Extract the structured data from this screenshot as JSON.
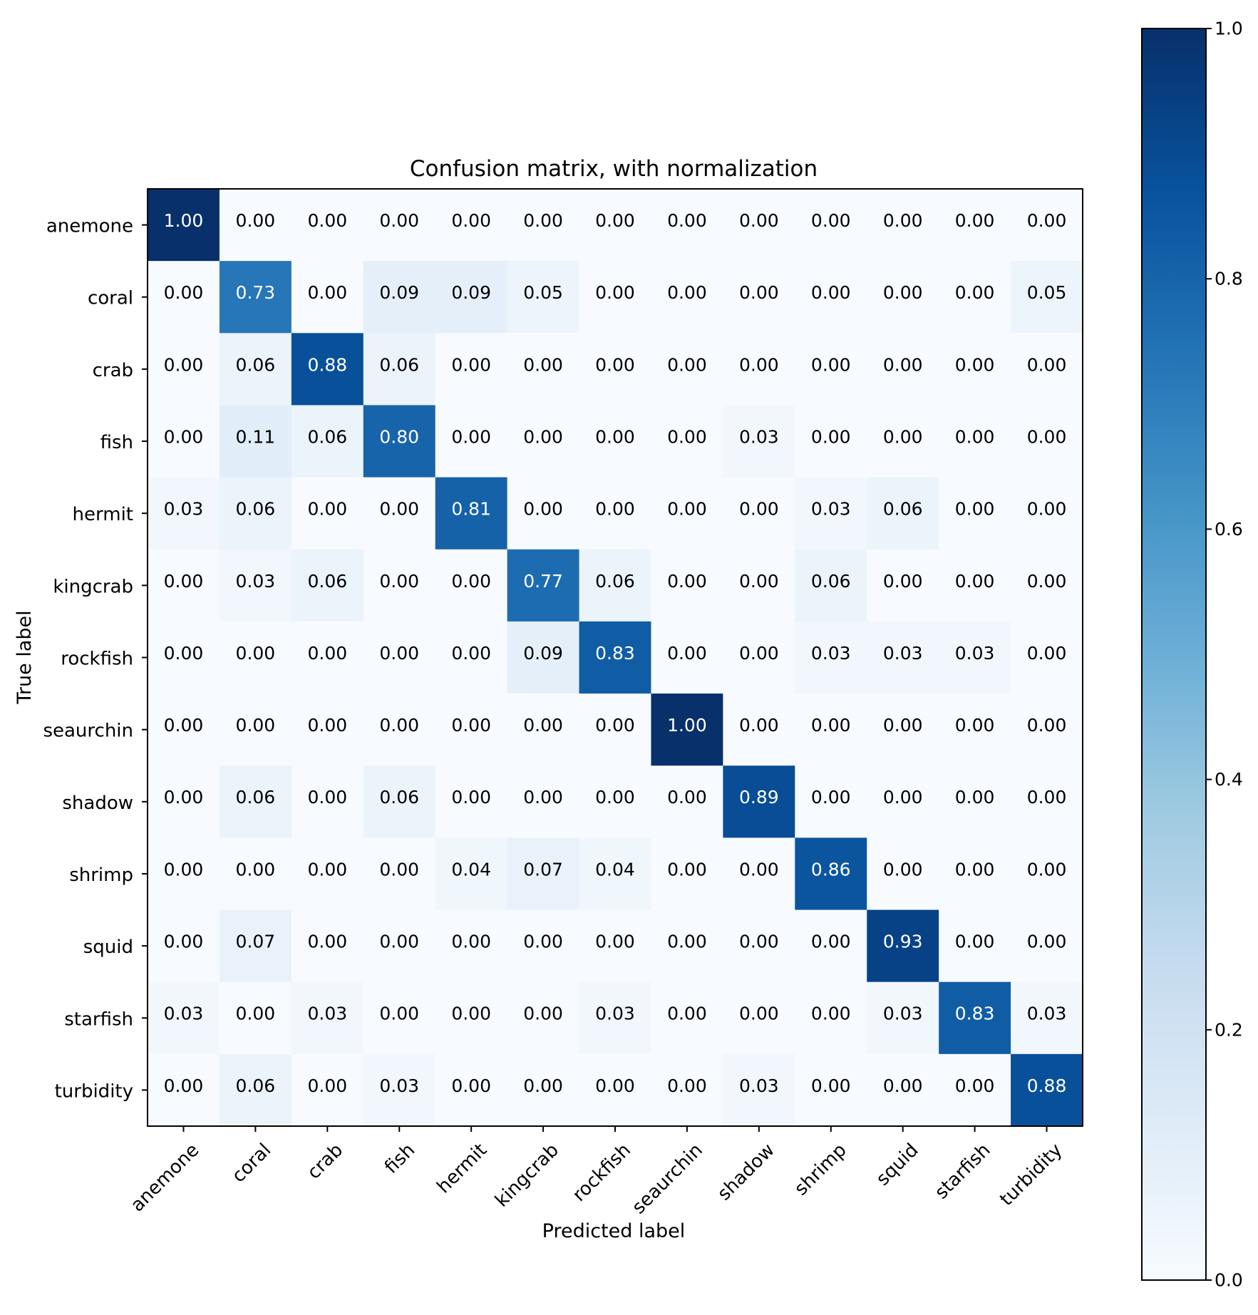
{
  "chart_data": {
    "type": "heatmap",
    "title": "Confusion matrix, with normalization",
    "xlabel": "Predicted label",
    "ylabel": "True label",
    "labels": [
      "anemone",
      "coral",
      "crab",
      "fish",
      "hermit",
      "kingcrab",
      "rockfish",
      "seaurchin",
      "shadow",
      "shrimp",
      "squid",
      "starfish",
      "turbidity"
    ],
    "matrix": [
      [
        1.0,
        0.0,
        0.0,
        0.0,
        0.0,
        0.0,
        0.0,
        0.0,
        0.0,
        0.0,
        0.0,
        0.0,
        0.0
      ],
      [
        0.0,
        0.73,
        0.0,
        0.09,
        0.09,
        0.05,
        0.0,
        0.0,
        0.0,
        0.0,
        0.0,
        0.0,
        0.05
      ],
      [
        0.0,
        0.06,
        0.88,
        0.06,
        0.0,
        0.0,
        0.0,
        0.0,
        0.0,
        0.0,
        0.0,
        0.0,
        0.0
      ],
      [
        0.0,
        0.11,
        0.06,
        0.8,
        0.0,
        0.0,
        0.0,
        0.0,
        0.03,
        0.0,
        0.0,
        0.0,
        0.0
      ],
      [
        0.03,
        0.06,
        0.0,
        0.0,
        0.81,
        0.0,
        0.0,
        0.0,
        0.0,
        0.03,
        0.06,
        0.0,
        0.0
      ],
      [
        0.0,
        0.03,
        0.06,
        0.0,
        0.0,
        0.77,
        0.06,
        0.0,
        0.0,
        0.06,
        0.0,
        0.0,
        0.0
      ],
      [
        0.0,
        0.0,
        0.0,
        0.0,
        0.0,
        0.09,
        0.83,
        0.0,
        0.0,
        0.03,
        0.03,
        0.03,
        0.0
      ],
      [
        0.0,
        0.0,
        0.0,
        0.0,
        0.0,
        0.0,
        0.0,
        1.0,
        0.0,
        0.0,
        0.0,
        0.0,
        0.0
      ],
      [
        0.0,
        0.06,
        0.0,
        0.06,
        0.0,
        0.0,
        0.0,
        0.0,
        0.89,
        0.0,
        0.0,
        0.0,
        0.0
      ],
      [
        0.0,
        0.0,
        0.0,
        0.0,
        0.04,
        0.07,
        0.04,
        0.0,
        0.0,
        0.86,
        0.0,
        0.0,
        0.0
      ],
      [
        0.0,
        0.07,
        0.0,
        0.0,
        0.0,
        0.0,
        0.0,
        0.0,
        0.0,
        0.0,
        0.93,
        0.0,
        0.0
      ],
      [
        0.03,
        0.0,
        0.03,
        0.0,
        0.0,
        0.0,
        0.03,
        0.0,
        0.0,
        0.0,
        0.03,
        0.83,
        0.03
      ],
      [
        0.0,
        0.06,
        0.0,
        0.03,
        0.0,
        0.0,
        0.0,
        0.0,
        0.03,
        0.0,
        0.0,
        0.0,
        0.88
      ]
    ],
    "value_format": "0.00",
    "colorbar": {
      "range": [
        0.0,
        1.0
      ],
      "ticks": [
        0.0,
        0.2,
        0.4,
        0.6,
        0.8,
        1.0
      ],
      "tick_labels": [
        "0.0",
        "0.2",
        "0.4",
        "0.6",
        "0.8",
        "1.0"
      ]
    },
    "colormap": "Blues",
    "colormap_stops": [
      "#f7fbff",
      "#deebf7",
      "#c6dbef",
      "#9ecae1",
      "#6baed6",
      "#4292c6",
      "#2171b5",
      "#08519c",
      "#08306b"
    ],
    "text_color_light": "#ffffff",
    "text_color_dark": "#000000"
  }
}
